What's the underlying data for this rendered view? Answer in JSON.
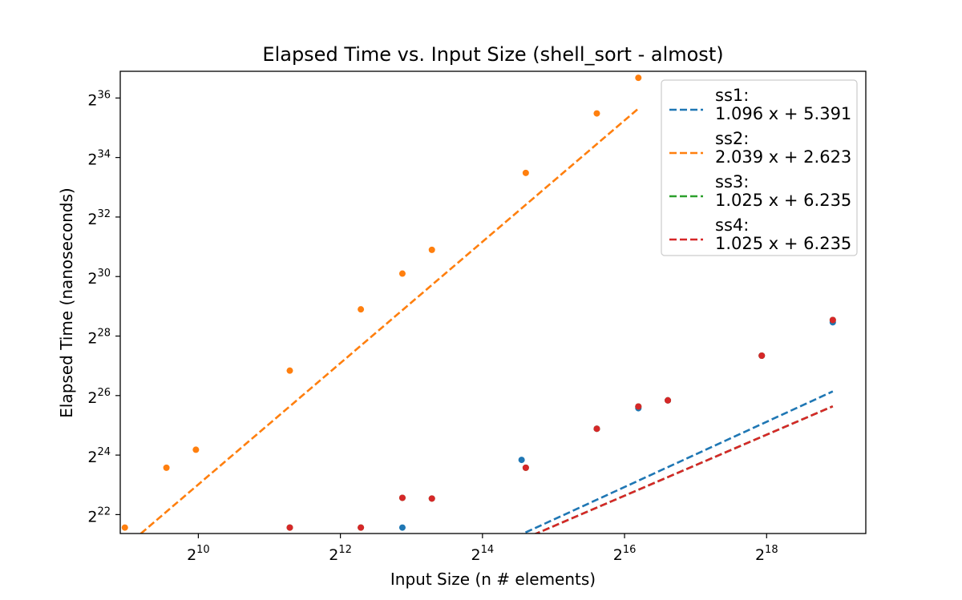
{
  "chart_data": {
    "type": "scatter",
    "title": "Elapsed Time vs. Input Size (shell_sort - almost)",
    "xlabel": "Input Size (n # elements)",
    "ylabel": "Elapsed Time (nanoseconds)",
    "log_base": 2,
    "xscale": "log2",
    "yscale": "log2",
    "xlim": [
      478,
      690000
    ],
    "ylim": [
      2700000,
      128000000000
    ],
    "x_ticks": [
      {
        "value": 1024,
        "base": "2",
        "exp": "10"
      },
      {
        "value": 4096,
        "base": "2",
        "exp": "12"
      },
      {
        "value": 16384,
        "base": "2",
        "exp": "14"
      },
      {
        "value": 65536,
        "base": "2",
        "exp": "16"
      },
      {
        "value": 262144,
        "base": "2",
        "exp": "18"
      }
    ],
    "y_ticks": [
      {
        "value": 4194304,
        "base": "2",
        "exp": "22"
      },
      {
        "value": 16777216,
        "base": "2",
        "exp": "24"
      },
      {
        "value": 67108864,
        "base": "2",
        "exp": "26"
      },
      {
        "value": 268435456,
        "base": "2",
        "exp": "28"
      },
      {
        "value": 1073741824,
        "base": "2",
        "exp": "30"
      },
      {
        "value": 4294967296,
        "base": "2",
        "exp": "32"
      },
      {
        "value": 17179869184,
        "base": "2",
        "exp": "34"
      },
      {
        "value": 68719476736,
        "base": "2",
        "exp": "36"
      }
    ],
    "grid": false,
    "legend_position": "top-right",
    "series": [
      {
        "name": "ss1:",
        "fit_label": "1.096 x + 5.391",
        "color": "#1f77b4",
        "fit": {
          "slope": 1.096,
          "intercept": 5.391
        },
        "fit_x_range": [
          7500,
          500000
        ],
        "points": [
          {
            "x": 7500,
            "y": 3100000
          },
          {
            "x": 24000,
            "y": 15000000
          },
          {
            "x": 50000,
            "y": 31000000
          },
          {
            "x": 75000,
            "y": 50000000
          },
          {
            "x": 100000,
            "y": 60000000
          },
          {
            "x": 250000,
            "y": 170000000
          },
          {
            "x": 500000,
            "y": 370000000
          }
        ]
      },
      {
        "name": "ss2:",
        "fit_label": "2.039 x + 2.623",
        "color": "#ff7f0e",
        "fit": {
          "slope": 2.039,
          "intercept": 2.623
        },
        "fit_x_range": [
          500,
          75000
        ],
        "points": [
          {
            "x": 500,
            "y": 3100000
          },
          {
            "x": 750,
            "y": 12500000
          },
          {
            "x": 1000,
            "y": 19000000
          },
          {
            "x": 2500,
            "y": 120000000
          },
          {
            "x": 5000,
            "y": 500000000
          },
          {
            "x": 7500,
            "y": 1150000000
          },
          {
            "x": 10000,
            "y": 2000000000
          },
          {
            "x": 25000,
            "y": 12000000000
          },
          {
            "x": 50000,
            "y": 48000000000
          },
          {
            "x": 75000,
            "y": 110000000000
          }
        ]
      },
      {
        "name": "ss3:",
        "fit_label": "1.025 x + 6.235",
        "color": "#2ca02c",
        "fit": {
          "slope": 1.025,
          "intercept": 6.235
        },
        "fit_x_range": [
          5000,
          500000
        ],
        "points": [
          {
            "x": 2500,
            "y": 3100000
          },
          {
            "x": 5000,
            "y": 3100000
          },
          {
            "x": 7500,
            "y": 6200000
          },
          {
            "x": 10000,
            "y": 6100000
          },
          {
            "x": 25000,
            "y": 12500000
          },
          {
            "x": 50000,
            "y": 31000000
          },
          {
            "x": 75000,
            "y": 52000000
          },
          {
            "x": 100000,
            "y": 60000000
          },
          {
            "x": 250000,
            "y": 170000000
          },
          {
            "x": 500000,
            "y": 390000000
          }
        ]
      },
      {
        "name": "ss4:",
        "fit_label": "1.025 x + 6.235",
        "color": "#d62728",
        "fit": {
          "slope": 1.025,
          "intercept": 6.235
        },
        "fit_x_range": [
          5000,
          500000
        ],
        "points": [
          {
            "x": 2500,
            "y": 3100000
          },
          {
            "x": 5000,
            "y": 3100000
          },
          {
            "x": 7500,
            "y": 6200000
          },
          {
            "x": 10000,
            "y": 6100000
          },
          {
            "x": 25000,
            "y": 12500000
          },
          {
            "x": 50000,
            "y": 31000000
          },
          {
            "x": 75000,
            "y": 52000000
          },
          {
            "x": 100000,
            "y": 60000000
          },
          {
            "x": 250000,
            "y": 170000000
          },
          {
            "x": 500000,
            "y": 390000000
          }
        ]
      }
    ]
  }
}
